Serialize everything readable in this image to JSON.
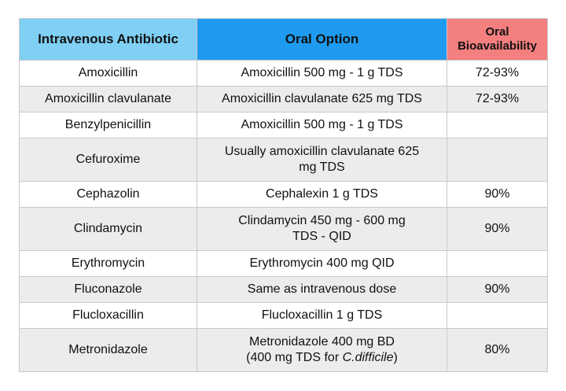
{
  "table": {
    "headers": {
      "col1": "Intravenous Antibiotic",
      "col2": "Oral Option",
      "col3_line1": "Oral",
      "col3_line2": "Bioavailability"
    },
    "colors": {
      "header_col1": "#7fd0f4",
      "header_col2": "#1e9bf0",
      "header_col3": "#f47f7f",
      "row_alt": "#ececec"
    },
    "rows": [
      {
        "iv": "Amoxicillin",
        "oral_line1": "Amoxicillin 500 mg - 1 g TDS",
        "oral_line2": "",
        "bio": "72-93%"
      },
      {
        "iv": "Amoxicillin clavulanate",
        "oral_line1": "Amoxicillin clavulanate 625 mg TDS",
        "oral_line2": "",
        "bio": "72-93%"
      },
      {
        "iv": "Benzylpenicillin",
        "oral_line1": "Amoxicillin 500 mg - 1 g TDS",
        "oral_line2": "",
        "bio": ""
      },
      {
        "iv": "Cefuroxime",
        "oral_line1": "Usually amoxicillin clavulanate 625",
        "oral_line2": "mg TDS",
        "bio": ""
      },
      {
        "iv": "Cephazolin",
        "oral_line1": "Cephalexin 1 g TDS",
        "oral_line2": "",
        "bio": "90%"
      },
      {
        "iv": "Clindamycin",
        "oral_line1": "Clindamycin 450 mg - 600 mg",
        "oral_line2": "TDS - QID",
        "bio": "90%"
      },
      {
        "iv": "Erythromycin",
        "oral_line1": "Erythromycin 400 mg QID",
        "oral_line2": "",
        "bio": ""
      },
      {
        "iv": "Fluconazole",
        "oral_line1": "Same as intravenous dose",
        "oral_line2": "",
        "bio": "90%"
      },
      {
        "iv": "Flucloxacillin",
        "oral_line1": "Flucloxacillin 1 g TDS",
        "oral_line2": "",
        "bio": ""
      },
      {
        "iv": "Metronidazole",
        "oral_line1": "Metronidazole 400 mg BD",
        "oral_line2_prefix": "(400 mg TDS for ",
        "oral_line2_italic": "C.difficile",
        "oral_line2_suffix": ")",
        "bio": "80%"
      }
    ]
  }
}
